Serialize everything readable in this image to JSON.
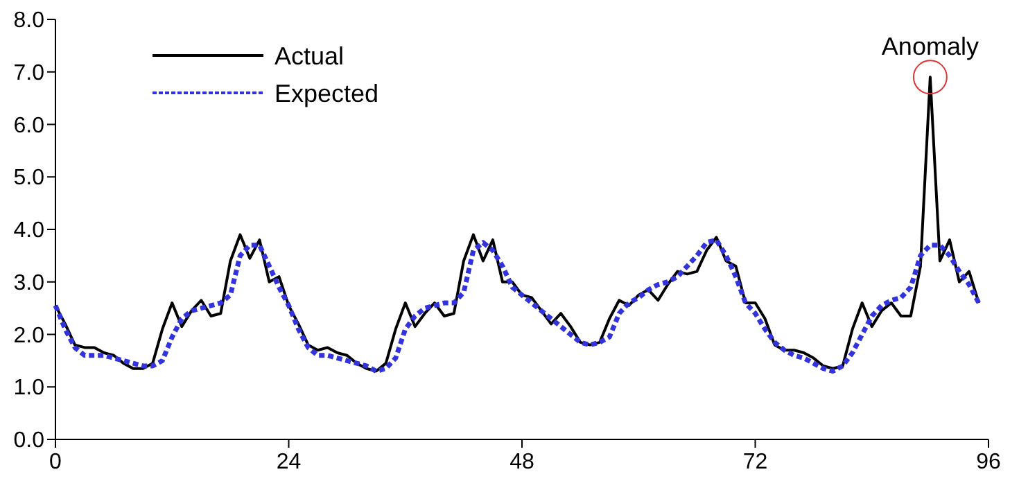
{
  "chart_data": {
    "type": "line",
    "xlim": [
      0,
      96
    ],
    "xticks": [
      0,
      24,
      48,
      72,
      96
    ],
    "ylim": [
      0,
      8
    ],
    "yticks": [
      {
        "value": 0,
        "label": "0.0"
      },
      {
        "value": 1,
        "label": "1.0"
      },
      {
        "value": 2,
        "label": "2.0"
      },
      {
        "value": 3,
        "label": "3.0"
      },
      {
        "value": 4,
        "label": "4.0"
      },
      {
        "value": 5,
        "label": "5.0"
      },
      {
        "value": 6,
        "label": "6.0"
      },
      {
        "value": 7,
        "label": "7.0"
      },
      {
        "value": 8,
        "label": "8.0"
      }
    ],
    "grid": false,
    "legend": "top left",
    "marker": "none",
    "x": [
      0,
      1,
      2,
      3,
      4,
      5,
      6,
      7,
      8,
      9,
      10,
      11,
      12,
      13,
      14,
      15,
      16,
      17,
      18,
      19,
      20,
      21,
      22,
      23,
      24,
      25,
      26,
      27,
      28,
      29,
      30,
      31,
      32,
      33,
      34,
      35,
      36,
      37,
      38,
      39,
      40,
      41,
      42,
      43,
      44,
      45,
      46,
      47,
      48,
      49,
      50,
      51,
      52,
      53,
      54,
      55,
      56,
      57,
      58,
      59,
      60,
      61,
      62,
      63,
      64,
      65,
      66,
      67,
      68,
      69,
      70,
      71,
      72,
      73,
      74,
      75,
      76,
      77,
      78,
      79,
      80,
      81,
      82,
      83,
      84,
      85,
      86,
      87,
      88,
      89,
      90,
      91,
      92,
      93,
      94,
      95
    ],
    "series": [
      {
        "name": "Actual",
        "color": "#000000",
        "line_style": "solid",
        "values": [
          2.55,
          2.2,
          1.8,
          1.75,
          1.75,
          1.65,
          1.6,
          1.45,
          1.35,
          1.35,
          1.45,
          2.1,
          2.6,
          2.15,
          2.45,
          2.65,
          2.35,
          2.4,
          3.4,
          3.9,
          3.45,
          3.8,
          3.0,
          3.1,
          2.55,
          2.2,
          1.8,
          1.7,
          1.75,
          1.65,
          1.6,
          1.45,
          1.35,
          1.3,
          1.45,
          2.1,
          2.6,
          2.15,
          2.4,
          2.6,
          2.35,
          2.4,
          3.4,
          3.9,
          3.4,
          3.8,
          3.0,
          3.0,
          2.75,
          2.7,
          2.45,
          2.2,
          2.4,
          2.15,
          1.85,
          1.8,
          1.85,
          2.3,
          2.65,
          2.55,
          2.75,
          2.85,
          2.65,
          2.95,
          3.2,
          3.15,
          3.2,
          3.6,
          3.85,
          3.4,
          3.3,
          2.6,
          2.6,
          2.3,
          1.8,
          1.7,
          1.7,
          1.65,
          1.55,
          1.4,
          1.35,
          1.4,
          2.1,
          2.6,
          2.15,
          2.45,
          2.6,
          2.35,
          2.35,
          3.3,
          6.9,
          3.4,
          3.8,
          3.0,
          3.2,
          2.6
        ]
      },
      {
        "name": "Expected",
        "color": "#3333dd",
        "line_style": "dashed",
        "values": [
          2.55,
          2.1,
          1.75,
          1.6,
          1.6,
          1.6,
          1.55,
          1.5,
          1.45,
          1.4,
          1.4,
          1.5,
          1.95,
          2.3,
          2.45,
          2.5,
          2.55,
          2.6,
          2.75,
          3.5,
          3.7,
          3.7,
          3.3,
          2.9,
          2.55,
          2.1,
          1.75,
          1.6,
          1.6,
          1.55,
          1.5,
          1.45,
          1.4,
          1.3,
          1.35,
          1.55,
          2.1,
          2.35,
          2.5,
          2.55,
          2.6,
          2.6,
          2.8,
          3.6,
          3.75,
          3.6,
          3.3,
          2.9,
          2.75,
          2.6,
          2.45,
          2.3,
          2.15,
          2.0,
          1.85,
          1.8,
          1.85,
          1.95,
          2.4,
          2.6,
          2.7,
          2.85,
          2.95,
          3.0,
          3.1,
          3.3,
          3.5,
          3.75,
          3.8,
          3.5,
          3.1,
          2.6,
          2.4,
          2.1,
          1.85,
          1.7,
          1.6,
          1.55,
          1.45,
          1.35,
          1.3,
          1.4,
          1.65,
          2.0,
          2.35,
          2.55,
          2.65,
          2.7,
          2.9,
          3.5,
          3.7,
          3.7,
          3.5,
          3.2,
          2.95,
          2.6
        ]
      }
    ],
    "annotations": [
      {
        "text": "Anomaly",
        "x": 90,
        "y": 6.9
      }
    ]
  }
}
